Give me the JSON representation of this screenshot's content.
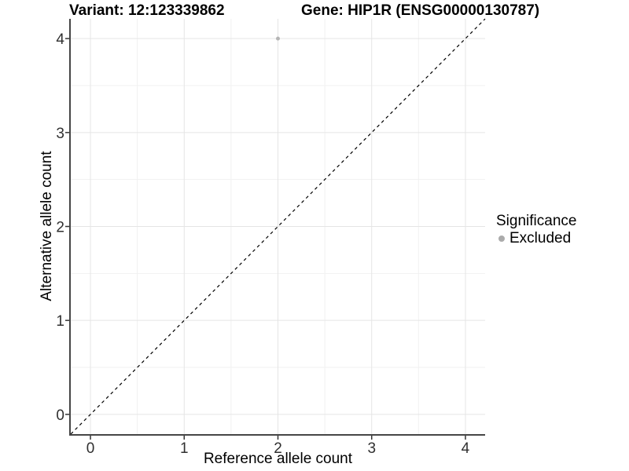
{
  "header": {
    "title_variant": "Variant: 12:123339862",
    "title_gene": "Gene: HIP1R (ENSG00000130787)"
  },
  "legend": {
    "title": "Significance",
    "items": [
      {
        "label": "Excluded",
        "color": "#ababab"
      }
    ]
  },
  "chart_data": {
    "type": "scatter",
    "title_left": "Variant: 12:123339862",
    "title_right": "Gene: HIP1R (ENSG00000130787)",
    "xlabel": "Reference allele count",
    "ylabel": "Alternative allele count",
    "xlim": [
      -0.21,
      4.21
    ],
    "ylim": [
      -0.21,
      4.21
    ],
    "xticks": [
      0,
      1,
      2,
      3,
      4
    ],
    "yticks": [
      0,
      1,
      2,
      3,
      4
    ],
    "minor_xticks": [
      0.5,
      1.5,
      2.5,
      3.5
    ],
    "minor_yticks": [
      0.5,
      1.5,
      2.5,
      3.5
    ],
    "grid": "major+minor",
    "legend_position": "right",
    "legend_title": "Significance",
    "reference_line": {
      "kind": "identity",
      "slope": 1,
      "intercept": 0,
      "style": "dashed",
      "color": "#000000"
    },
    "series": [
      {
        "name": "Excluded",
        "color": "#b5b5b5",
        "point_radius": 2.5,
        "points": [
          {
            "x": 2,
            "y": 4
          }
        ]
      }
    ],
    "colors": {
      "background": "#ffffff",
      "grid_major": "#e5e5e5",
      "grid_minor": "#f1f1f1",
      "axis_line": "#464646",
      "tick_mark": "#343434",
      "tick_label": "#303030"
    }
  }
}
